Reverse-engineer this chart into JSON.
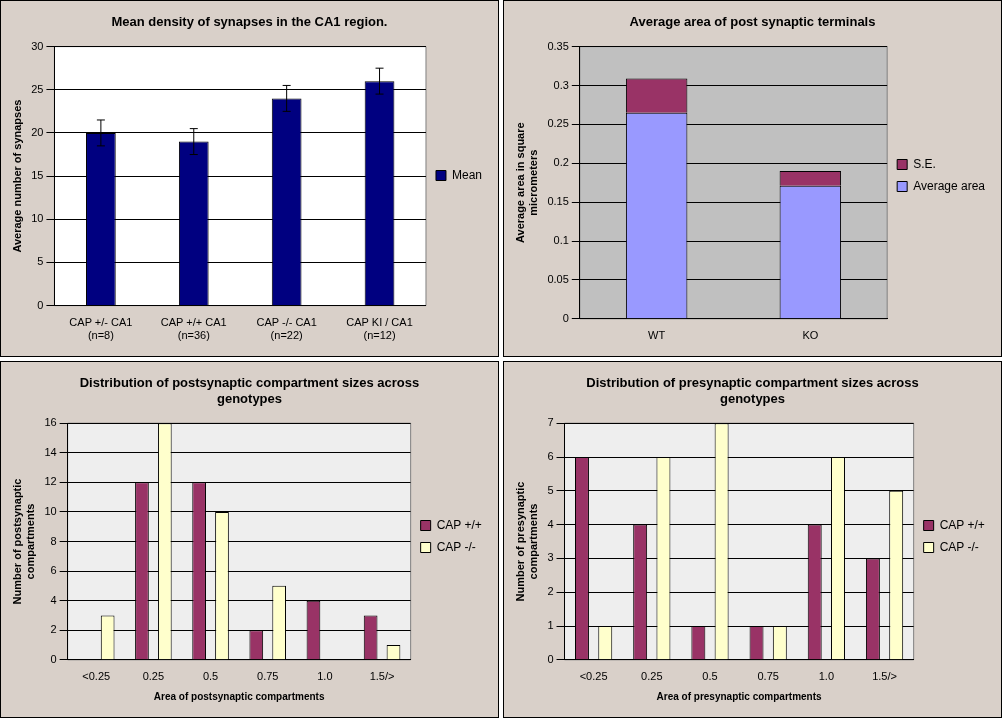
{
  "chart_data": [
    {
      "type": "bar",
      "title": "Mean density of synapses in the CA1 region.",
      "ylabel": "Average number of synapses",
      "categories": [
        "CAP +/- CA1\n(n=8)",
        "CAP +/+ CA1\n(n=36)",
        "CAP -/- CA1\n(n=22)",
        "CAP KI / CA1\n(n=12)"
      ],
      "series": [
        {
          "name": "Mean",
          "color": "#000080",
          "values": [
            20,
            19,
            24,
            26
          ],
          "errors": [
            1.5,
            1.5,
            1.5,
            1.5
          ]
        }
      ],
      "ylim": [
        0,
        30
      ],
      "yticks": [
        0,
        5,
        10,
        15,
        20,
        25,
        30
      ],
      "grid": "y",
      "legend": "right"
    },
    {
      "type": "bar",
      "title": "Average area of post synaptic terminals",
      "ylabel": "Average area in square micrometers",
      "categories": [
        "WT",
        "KO"
      ],
      "stacked": true,
      "series": [
        {
          "name": "Average area",
          "color": "#9999ff",
          "values": [
            0.265,
            0.171
          ]
        },
        {
          "name": "S.E.",
          "color": "#993366",
          "values": [
            0.044,
            0.019
          ]
        }
      ],
      "ylim": [
        0,
        0.35
      ],
      "yticks": [
        0,
        0.05,
        0.1,
        0.15,
        0.2,
        0.25,
        0.3,
        0.35
      ],
      "grid": "y",
      "legend": "right"
    },
    {
      "type": "bar",
      "title": "Distribution of postsynaptic compartment sizes across genotypes",
      "xlabel": "Area of postsynaptic compartments",
      "ylabel": "Number of postsynaptic compartments",
      "categories": [
        "<0.25",
        "0.25",
        "0.5",
        "0.75",
        "1.0",
        "1.5/>"
      ],
      "series": [
        {
          "name": "CAP +/+",
          "color": "#993366",
          "values": [
            0,
            12,
            12,
            2,
            4,
            3
          ]
        },
        {
          "name": "CAP -/-",
          "color": "#ffffcc",
          "values": [
            3,
            16,
            10,
            5,
            0,
            1
          ]
        }
      ],
      "ylim": [
        0,
        16
      ],
      "yticks": [
        0,
        2,
        4,
        6,
        8,
        10,
        12,
        14,
        16
      ],
      "grid": "y",
      "legend": "right"
    },
    {
      "type": "bar",
      "title": "Distribution of presynaptic compartment sizes across genotypes",
      "xlabel": "Area of presynaptic compartments",
      "ylabel": "Number of presynaptic compartments",
      "categories": [
        "<0.25",
        "0.25",
        "0.5",
        "0.75",
        "1.0",
        "1.5/>"
      ],
      "series": [
        {
          "name": "CAP +/+",
          "color": "#993366",
          "values": [
            6,
            4,
            1,
            1,
            4,
            3
          ]
        },
        {
          "name": "CAP -/-",
          "color": "#ffffcc",
          "values": [
            1,
            6,
            7,
            1,
            6,
            5
          ]
        }
      ],
      "ylim": [
        0,
        7
      ],
      "yticks": [
        0,
        1,
        2,
        3,
        4,
        5,
        6,
        7
      ],
      "grid": "y",
      "legend": "right"
    }
  ]
}
